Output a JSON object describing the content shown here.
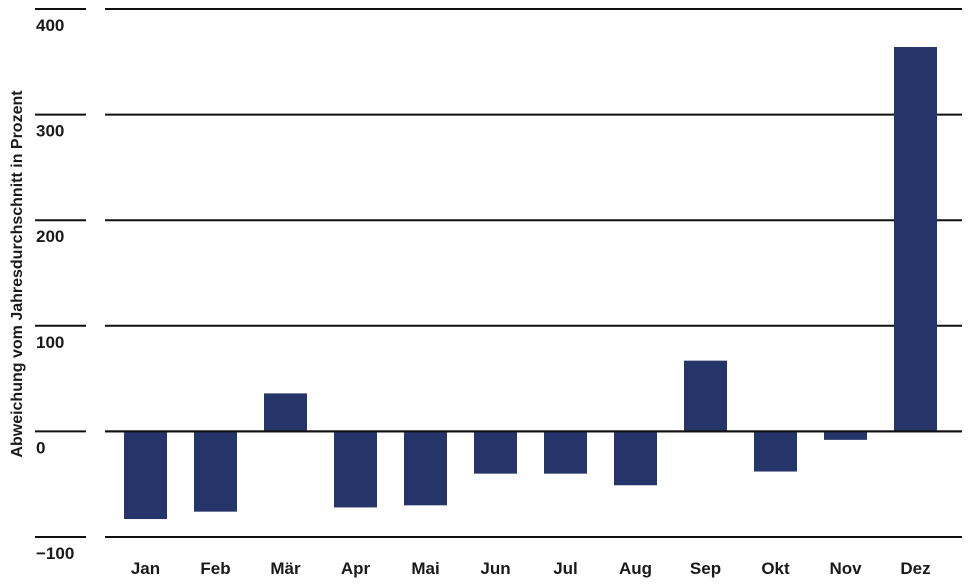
{
  "chart_data": {
    "type": "bar",
    "title": "",
    "xlabel": "",
    "ylabel": "Abweichung vom Jahresdurchschnitt in Prozent",
    "ylim": [
      -100,
      400
    ],
    "yticks": [
      -100,
      0,
      100,
      200,
      300,
      400
    ],
    "ytick_labels": [
      "−100",
      "0",
      "100",
      "200",
      "300",
      "400"
    ],
    "grid": true,
    "categories": [
      "Jan",
      "Feb",
      "Mär",
      "Apr",
      "Mai",
      "Jun",
      "Jul",
      "Aug",
      "Sep",
      "Okt",
      "Nov",
      "Dez"
    ],
    "values": [
      -83,
      -76,
      36,
      -72,
      -70,
      -40,
      -40,
      -51,
      67,
      -38,
      -8,
      364
    ],
    "bar_color": "#253569"
  }
}
